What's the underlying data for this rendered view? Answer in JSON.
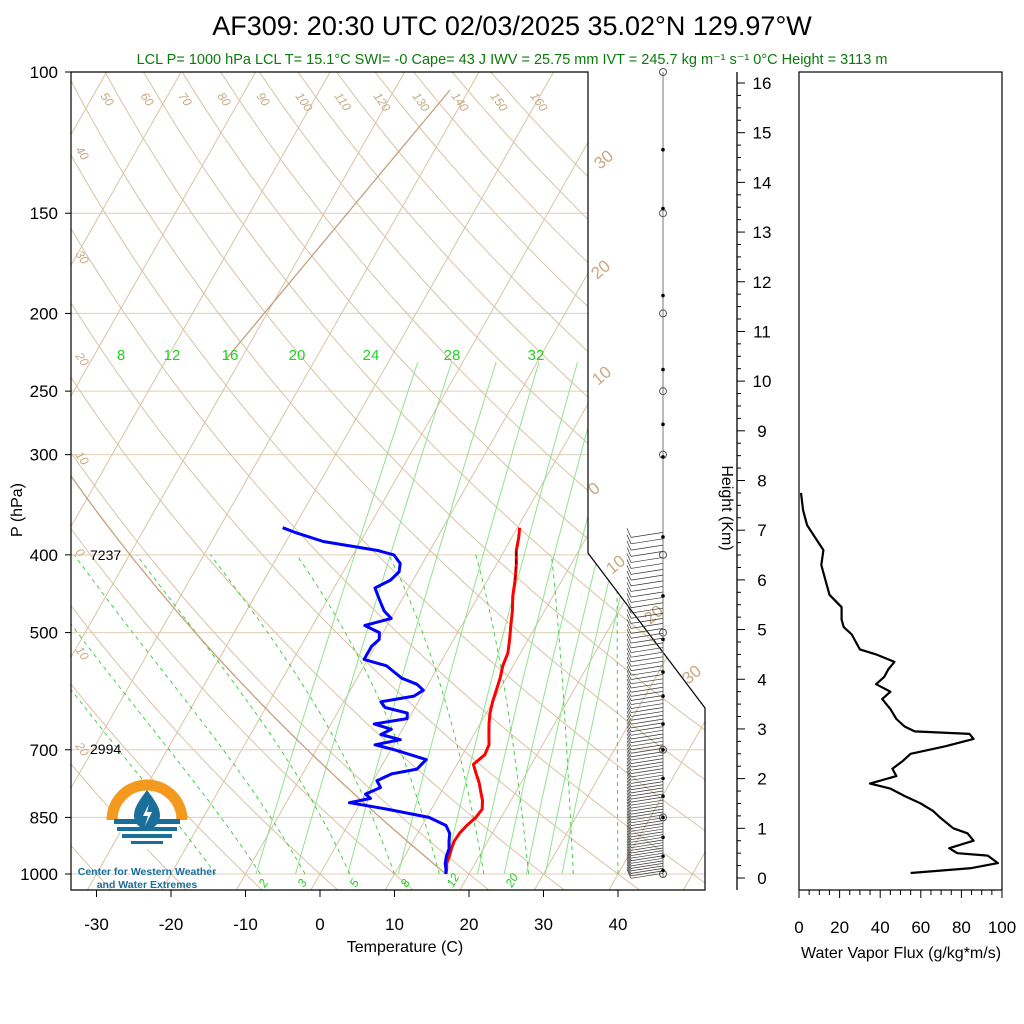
{
  "title": "AF309: 20:30 UTC 02/03/2025  35.02°N 129.97°W",
  "subtitle": "LCL P= 1000 hPa  LCL T= 15.1°C  SWI= -0  Cape= 43 J  IWV = 25.75 mm  IVT = 245.7 kg m⁻¹ s⁻¹  0°C Height = 3113 m",
  "logo": {
    "line1": "Center for Western Weather",
    "line2": "and Water Extremes"
  },
  "annotations": [
    {
      "p": 400,
      "text": "7237"
    },
    {
      "p": 700,
      "text": "2994"
    }
  ],
  "colors": {
    "temperature": "#ff0000",
    "dewpoint": "#0000ff",
    "dry_adiabat": "#c8aa82",
    "mixing_ratio": "#22d022",
    "logo_orange": "#f39a1e",
    "logo_blue": "#1a6f9a"
  },
  "chart_data": [
    {
      "type": "line",
      "name": "skew-T",
      "xlabel": "Temperature (C)",
      "ylabel": "P (hPa)",
      "xticks": [
        -30,
        -20,
        -10,
        0,
        10,
        20,
        30,
        40
      ],
      "pressure_ticks": [
        100,
        150,
        200,
        250,
        300,
        400,
        500,
        700,
        850,
        1000
      ],
      "scale": "log-pressure",
      "isotherm_labels": [
        "50",
        "60",
        "70",
        "80",
        "90",
        "100",
        "110",
        "120",
        "130",
        "140",
        "150",
        "160"
      ],
      "isotherm_labels_left": [
        "40",
        "30",
        "20",
        "10",
        "0",
        "10",
        "20"
      ],
      "isotherm_labels_right": [
        "30",
        "20",
        "10",
        "0",
        "10",
        "20",
        "30"
      ],
      "mixing_ratio_labels": [
        "8",
        "12",
        "16",
        "20",
        "24",
        "28",
        "32"
      ],
      "mixing_ratio_labels_bottom": [
        "2",
        "3",
        "5",
        "8",
        "12",
        "20"
      ],
      "temperature": {
        "p": [
          1000,
          985,
          970,
          950,
          930,
          910,
          890,
          870,
          850,
          830,
          810,
          790,
          770,
          750,
          730,
          710,
          690,
          670,
          650,
          630,
          610,
          590,
          570,
          550,
          530,
          510,
          490,
          470,
          450,
          430,
          410,
          395,
          380,
          370
        ],
        "t": [
          16.9,
          16.6,
          16.2,
          16.0,
          15.7,
          15.5,
          15.6,
          16.0,
          16.6,
          16.8,
          16.2,
          15.3,
          14.4,
          13.3,
          12.2,
          13.0,
          12.8,
          12.0,
          11.2,
          10.5,
          10.0,
          9.6,
          9.2,
          8.6,
          8.3,
          7.5,
          6.6,
          5.7,
          4.6,
          3.7,
          2.6,
          1.6,
          0.9,
          0.3
        ]
      },
      "dewpoint": {
        "p": [
          1000,
          985,
          970,
          950,
          930,
          910,
          890,
          870,
          850,
          830,
          815,
          805,
          795,
          780,
          765,
          750,
          740,
          720,
          700,
          690,
          680,
          670,
          660,
          650,
          640,
          630,
          620,
          610,
          600,
          590,
          580,
          570,
          560,
          550,
          540,
          530,
          520,
          510,
          500,
          490,
          480,
          470,
          460,
          450,
          440,
          430,
          420,
          410,
          400,
          395,
          385,
          375,
          370
        ],
        "td": [
          16.9,
          16.5,
          16.0,
          15.6,
          15.4,
          14.8,
          14.3,
          13.2,
          10.3,
          4.0,
          -1.5,
          1.0,
          0.0,
          1.5,
          0.5,
          2.0,
          5.0,
          5.5,
          0.5,
          -2.5,
          0.5,
          -2.5,
          -1.5,
          -4.2,
          -0.2,
          -0.6,
          -4.0,
          -5.0,
          -1.0,
          -0.2,
          -1.5,
          -4.0,
          -5.5,
          -7.0,
          -10.5,
          -10.5,
          -10.5,
          -10.0,
          -10.5,
          -13.0,
          -10.0,
          -11.5,
          -12.5,
          -13.5,
          -14.5,
          -13.0,
          -12.5,
          -13.0,
          -14.5,
          -17.0,
          -25.0,
          -29.5,
          -31.5
        ]
      }
    },
    {
      "type": "line",
      "name": "water-vapor-flux",
      "xlabel": "Water Vapor Flux (g/kg*m/s)",
      "ylabel": "Height (Km)",
      "xlim": [
        0,
        100
      ],
      "ylim": [
        0,
        16
      ],
      "xticks": [
        0,
        20,
        40,
        60,
        80,
        100
      ],
      "yticks": [
        0,
        1,
        2,
        3,
        4,
        5,
        6,
        7,
        8,
        9,
        10,
        11,
        12,
        13,
        14,
        15,
        16
      ],
      "height": [
        0.1,
        0.2,
        0.3,
        0.45,
        0.5,
        0.6,
        0.75,
        0.9,
        1.0,
        1.2,
        1.35,
        1.5,
        1.65,
        1.8,
        1.9,
        2.05,
        2.2,
        2.35,
        2.5,
        2.65,
        2.8,
        2.9,
        2.95,
        3.05,
        3.2,
        3.4,
        3.6,
        3.75,
        3.9,
        4.05,
        4.2,
        4.35,
        4.5,
        4.6,
        4.75,
        4.9,
        5.05,
        5.2,
        5.45,
        5.7,
        6.0,
        6.3,
        6.6,
        6.85,
        7.1,
        7.4,
        7.75
      ],
      "flux": [
        55,
        85,
        98,
        93,
        78,
        74,
        86,
        83,
        76,
        70,
        66,
        60,
        52,
        45,
        35,
        48,
        46,
        51,
        55,
        72,
        86,
        84,
        57,
        52,
        48,
        45,
        41,
        45,
        38,
        42,
        44,
        47,
        38,
        30,
        28,
        26,
        22,
        21,
        21,
        15,
        13,
        11,
        12,
        8,
        4,
        2,
        1
      ]
    }
  ]
}
